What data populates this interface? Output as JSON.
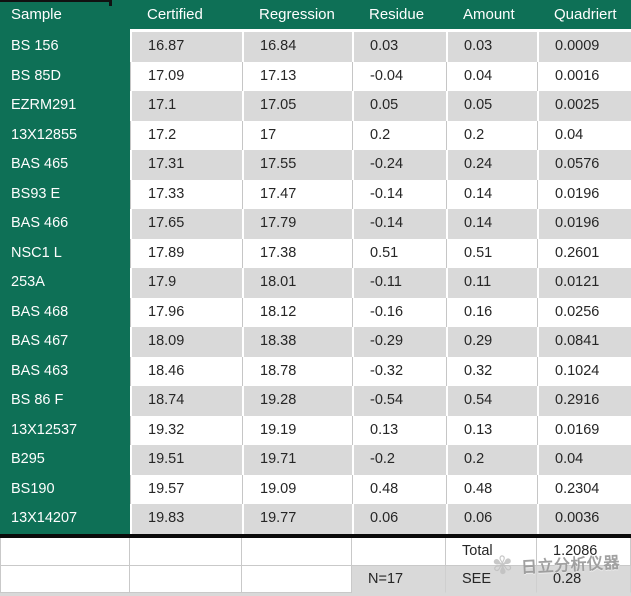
{
  "colors": {
    "header_green": "#0E7056",
    "band_gray": "#D9D9D9",
    "border_gray": "#C9C9C9",
    "divider_black": "#0A0A0A",
    "text_dark": "#262626",
    "watermark_gray": "#949494"
  },
  "table": {
    "columns": [
      "Sample",
      "Certified",
      "Regression",
      "Residue",
      "Amount",
      "Quadriert"
    ],
    "rows": [
      [
        "BS 156",
        "16.87",
        "16.84",
        "0.03",
        "0.03",
        "0.0009"
      ],
      [
        "BS 85D",
        "17.09",
        "17.13",
        "-0.04",
        "0.04",
        "0.0016"
      ],
      [
        "EZRM291",
        "17.1",
        "17.05",
        "0.05",
        "0.05",
        "0.0025"
      ],
      [
        "13X12855",
        "17.2",
        "17",
        "0.2",
        "0.2",
        "0.04"
      ],
      [
        "BAS 465",
        "17.31",
        "17.55",
        "-0.24",
        "0.24",
        "0.0576"
      ],
      [
        "BS93 E",
        "17.33",
        "17.47",
        "-0.14",
        "0.14",
        "0.0196"
      ],
      [
        "BAS 466",
        "17.65",
        "17.79",
        "-0.14",
        "0.14",
        "0.0196"
      ],
      [
        "NSC1 L",
        "17.89",
        "17.38",
        "0.51",
        "0.51",
        "0.2601"
      ],
      [
        "253A",
        "17.9",
        "18.01",
        "-0.11",
        "0.11",
        "0.0121"
      ],
      [
        "BAS 468",
        "17.96",
        "18.12",
        "-0.16",
        "0.16",
        "0.0256"
      ],
      [
        "BAS 467",
        "18.09",
        "18.38",
        "-0.29",
        "0.29",
        "0.0841"
      ],
      [
        "BAS 463",
        "18.46",
        "18.78",
        "-0.32",
        "0.32",
        "0.1024"
      ],
      [
        "BS 86 F",
        "18.74",
        "19.28",
        "-0.54",
        "0.54",
        "0.2916"
      ],
      [
        "13X12537",
        "19.32",
        "19.19",
        "0.13",
        "0.13",
        "0.0169"
      ],
      [
        "B295",
        "19.51",
        "19.71",
        "-0.2",
        "0.2",
        "0.04"
      ],
      [
        "BS190",
        "19.57",
        "19.09",
        "0.48",
        "0.48",
        "0.2304"
      ],
      [
        "13X14207",
        "19.83",
        "19.77",
        "0.06",
        "0.06",
        "0.0036"
      ]
    ],
    "summary": {
      "total_label": "Total",
      "total_value": "1.2086",
      "n_label": "N=17",
      "see_label": "SEE",
      "see_value": "0.28"
    }
  },
  "watermark": {
    "icon": "flower-logo-icon",
    "icon_glyph": "✾",
    "text": "日立分析仪器"
  }
}
